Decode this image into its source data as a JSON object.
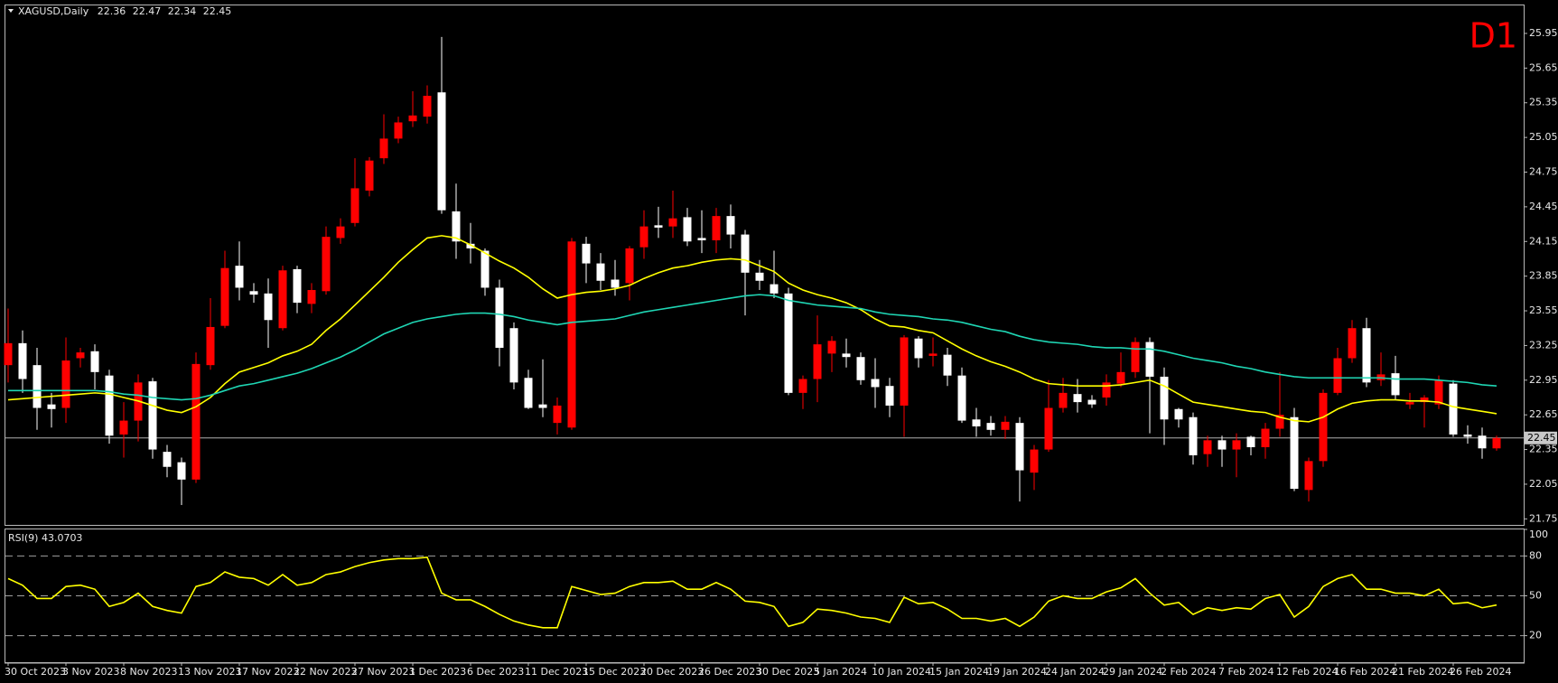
{
  "chart_data": {
    "type": "candlestick",
    "title": "XAGUSD,Daily",
    "timeframe": "D1",
    "categories": [
      "30 Oct 2023",
      null,
      null,
      null,
      "3 Nov 2023",
      null,
      null,
      null,
      "8 Nov 2023",
      null,
      null,
      null,
      "13 Nov 2023",
      null,
      null,
      null,
      "17 Nov 2023",
      null,
      null,
      null,
      "22 Nov 2023",
      null,
      null,
      null,
      "27 Nov 2023",
      null,
      null,
      null,
      "1 Dec 2023",
      null,
      null,
      null,
      "6 Dec 2023",
      null,
      null,
      null,
      "11 Dec 2023",
      null,
      null,
      null,
      "15 Dec 2023",
      null,
      null,
      null,
      "20 Dec 2023",
      null,
      null,
      null,
      "26 Dec 2023",
      null,
      null,
      null,
      "30 Dec 2023",
      null,
      null,
      null,
      "5 Jan 2024",
      null,
      null,
      null,
      "10 Jan 2024",
      null,
      null,
      null,
      "15 Jan 2024",
      null,
      null,
      null,
      "19 Jan 2024",
      null,
      null,
      null,
      "24 Jan 2024",
      null,
      null,
      null,
      "29 Jan 2024",
      null,
      null,
      null,
      "2 Feb 2024",
      null,
      null,
      null,
      "7 Feb 2024",
      null,
      null,
      null,
      "12 Feb 2024",
      null,
      null,
      null,
      "16 Feb 2024",
      null,
      null,
      null,
      "21 Feb 2024",
      null,
      null,
      null,
      "26 Feb 2024",
      null,
      null,
      null
    ],
    "candles": {
      "bull_color": "#ff0000",
      "bear_color": "#ffffff",
      "open": [
        23.08,
        23.27,
        23.08,
        22.74,
        22.71,
        23.14,
        23.2,
        22.99,
        22.48,
        22.6,
        22.94,
        22.33,
        22.24,
        22.09,
        23.08,
        23.42,
        23.94,
        23.72,
        23.7,
        23.4,
        23.91,
        23.61,
        23.72,
        24.18,
        24.31,
        24.59,
        24.87,
        25.04,
        25.19,
        25.23,
        25.44,
        24.41,
        24.13,
        24.07,
        23.75,
        23.4,
        22.97,
        22.74,
        22.58,
        22.54,
        24.13,
        23.96,
        23.82,
        23.79,
        24.1,
        24.29,
        24.28,
        24.36,
        24.18,
        24.16,
        24.37,
        24.21,
        23.88,
        23.78,
        23.7,
        22.84,
        22.96,
        23.18,
        23.18,
        23.15,
        22.96,
        22.9,
        22.73,
        23.31,
        23.16,
        23.17,
        22.99,
        22.61,
        22.58,
        22.52,
        22.58,
        22.15,
        22.35,
        22.71,
        22.83,
        22.78,
        22.8,
        22.92,
        23.02,
        23.28,
        22.98,
        22.7,
        22.63,
        22.31,
        22.43,
        22.35,
        22.46,
        22.37,
        22.53,
        22.63,
        22.0,
        22.25,
        22.84,
        23.14,
        23.4,
        22.95,
        23.01,
        22.74,
        22.76,
        22.74,
        22.92,
        22.48,
        22.47,
        22.36
      ],
      "high": [
        23.57,
        23.38,
        23.23,
        22.84,
        23.32,
        23.23,
        23.26,
        23.04,
        22.76,
        23.0,
        22.97,
        22.39,
        22.28,
        23.19,
        23.66,
        24.07,
        24.15,
        23.79,
        23.83,
        23.94,
        23.94,
        23.79,
        24.28,
        24.35,
        24.87,
        24.88,
        25.25,
        25.23,
        25.45,
        25.5,
        25.92,
        24.65,
        24.31,
        24.09,
        23.82,
        23.45,
        23.04,
        23.13,
        22.8,
        24.18,
        24.19,
        24.05,
        23.99,
        24.11,
        24.42,
        24.45,
        24.59,
        24.44,
        24.42,
        24.44,
        24.47,
        24.25,
        23.99,
        24.07,
        23.75,
        22.99,
        23.51,
        23.33,
        23.31,
        23.19,
        23.14,
        22.97,
        23.34,
        23.33,
        23.32,
        23.23,
        23.06,
        22.71,
        22.64,
        22.64,
        22.63,
        22.39,
        22.95,
        22.97,
        22.96,
        22.82,
        23.0,
        23.19,
        23.32,
        23.32,
        23.06,
        22.71,
        22.67,
        22.47,
        22.47,
        22.49,
        22.47,
        22.58,
        23.02,
        22.71,
        22.28,
        22.87,
        23.23,
        23.47,
        23.49,
        23.19,
        23.16,
        22.84,
        22.82,
        22.99,
        22.95,
        22.56,
        22.54,
        22.47
      ],
      "low": [
        22.93,
        22.84,
        22.52,
        22.54,
        22.58,
        23.06,
        22.87,
        22.4,
        22.28,
        22.42,
        22.27,
        22.11,
        21.87,
        22.06,
        23.04,
        23.4,
        23.64,
        23.62,
        23.23,
        23.38,
        23.53,
        23.53,
        23.69,
        24.13,
        24.28,
        24.54,
        24.82,
        25.0,
        25.14,
        25.17,
        24.39,
        24.0,
        23.96,
        23.68,
        23.07,
        22.87,
        22.7,
        22.63,
        22.48,
        22.52,
        23.79,
        23.73,
        23.68,
        23.64,
        24.0,
        24.18,
        24.18,
        24.11,
        24.05,
        24.05,
        24.09,
        23.51,
        23.73,
        23.66,
        22.82,
        22.7,
        22.76,
        23.02,
        23.06,
        22.91,
        22.71,
        22.63,
        22.46,
        23.06,
        23.07,
        22.9,
        22.58,
        22.46,
        22.47,
        22.44,
        21.9,
        22.0,
        22.33,
        22.67,
        22.67,
        22.71,
        22.73,
        22.89,
        22.97,
        22.49,
        22.39,
        22.54,
        22.22,
        22.2,
        22.2,
        22.11,
        22.3,
        22.27,
        22.46,
        21.99,
        21.9,
        22.2,
        22.82,
        23.1,
        22.89,
        22.9,
        22.78,
        22.7,
        22.54,
        22.7,
        22.46,
        22.4,
        22.27,
        22.34
      ],
      "close": [
        23.27,
        22.96,
        22.71,
        22.7,
        23.12,
        23.19,
        23.02,
        22.47,
        22.6,
        22.93,
        22.35,
        22.2,
        22.09,
        23.09,
        23.41,
        23.92,
        23.75,
        23.69,
        23.47,
        23.9,
        23.62,
        23.73,
        24.19,
        24.28,
        24.61,
        24.85,
        25.04,
        25.18,
        25.24,
        25.41,
        24.42,
        24.15,
        24.09,
        23.75,
        23.23,
        22.93,
        22.71,
        22.71,
        22.73,
        24.15,
        23.96,
        23.81,
        23.75,
        24.09,
        24.28,
        24.27,
        24.35,
        24.15,
        24.16,
        24.37,
        24.21,
        23.88,
        23.81,
        23.7,
        22.84,
        22.96,
        23.26,
        23.29,
        23.15,
        22.95,
        22.89,
        22.73,
        23.32,
        23.14,
        23.18,
        22.99,
        22.6,
        22.55,
        22.52,
        22.59,
        22.17,
        22.35,
        22.71,
        22.84,
        22.76,
        22.74,
        22.93,
        23.02,
        23.28,
        22.98,
        22.61,
        22.61,
        22.3,
        22.43,
        22.35,
        22.43,
        22.37,
        22.53,
        22.65,
        22.01,
        22.25,
        22.84,
        23.14,
        23.4,
        22.93,
        23.0,
        22.82,
        22.76,
        22.8,
        22.95,
        22.48,
        22.46,
        22.36,
        22.45
      ]
    },
    "overlays": [
      {
        "type": "line",
        "color": "#ffff00",
        "values": [
          22.78,
          22.79,
          22.8,
          22.81,
          22.82,
          22.83,
          22.84,
          22.83,
          22.8,
          22.77,
          22.73,
          22.69,
          22.67,
          22.72,
          22.8,
          22.92,
          23.02,
          23.06,
          23.1,
          23.16,
          23.2,
          23.26,
          23.38,
          23.48,
          23.6,
          23.72,
          23.84,
          23.97,
          24.08,
          24.18,
          24.2,
          24.18,
          24.12,
          24.05,
          23.98,
          23.92,
          23.84,
          23.74,
          23.66,
          23.69,
          23.71,
          23.72,
          23.74,
          23.77,
          23.83,
          23.88,
          23.92,
          23.94,
          23.97,
          23.99,
          24.0,
          23.99,
          23.94,
          23.89,
          23.79,
          23.73,
          23.69,
          23.66,
          23.62,
          23.56,
          23.48,
          23.42,
          23.41,
          23.38,
          23.36,
          23.29,
          23.22,
          23.16,
          23.11,
          23.07,
          23.02,
          22.96,
          22.92,
          22.91,
          22.9,
          22.9,
          22.9,
          22.91,
          22.93,
          22.95,
          22.9,
          22.83,
          22.76,
          22.74,
          22.72,
          22.7,
          22.68,
          22.67,
          22.63,
          22.6,
          22.59,
          22.63,
          22.7,
          22.75,
          22.77,
          22.78,
          22.78,
          22.77,
          22.77,
          22.76,
          22.72,
          22.7,
          22.68,
          22.66
        ]
      },
      {
        "type": "line",
        "color": "#1fd6b4",
        "values": [
          22.86,
          22.86,
          22.86,
          22.86,
          22.86,
          22.86,
          22.86,
          22.85,
          22.83,
          22.82,
          22.8,
          22.79,
          22.78,
          22.79,
          22.82,
          22.86,
          22.9,
          22.92,
          22.95,
          22.98,
          23.01,
          23.05,
          23.1,
          23.15,
          23.21,
          23.28,
          23.35,
          23.4,
          23.45,
          23.48,
          23.5,
          23.52,
          23.53,
          23.53,
          23.52,
          23.5,
          23.47,
          23.45,
          23.43,
          23.45,
          23.46,
          23.47,
          23.48,
          23.51,
          23.54,
          23.56,
          23.58,
          23.6,
          23.62,
          23.64,
          23.66,
          23.68,
          23.69,
          23.68,
          23.64,
          23.62,
          23.6,
          23.59,
          23.58,
          23.57,
          23.54,
          23.52,
          23.51,
          23.5,
          23.48,
          23.47,
          23.45,
          23.42,
          23.39,
          23.37,
          23.33,
          23.3,
          23.28,
          23.27,
          23.26,
          23.24,
          23.23,
          23.23,
          23.22,
          23.22,
          23.2,
          23.17,
          23.14,
          23.12,
          23.1,
          23.07,
          23.05,
          23.02,
          23.0,
          22.98,
          22.97,
          22.97,
          22.97,
          22.97,
          22.97,
          22.97,
          22.96,
          22.96,
          22.96,
          22.95,
          22.94,
          22.93,
          22.91,
          22.9
        ]
      }
    ],
    "ylim": [
      21.69,
      26.2
    ],
    "yticks": [
      21.75,
      22.05,
      22.35,
      22.65,
      22.95,
      23.25,
      23.55,
      23.85,
      24.15,
      24.45,
      24.75,
      25.05,
      25.35,
      25.65,
      25.95
    ],
    "grid": false,
    "current_price_line": true,
    "indicator": {
      "type": "line",
      "title": "RSI(9) 43.0703",
      "color": "#ffff00",
      "values": [
        63,
        58,
        48,
        48,
        57,
        58,
        55,
        42,
        45,
        52,
        42,
        39,
        37,
        57,
        60,
        68,
        64,
        63,
        58,
        66,
        58,
        60,
        66,
        68,
        72,
        75,
        77,
        78,
        78,
        79,
        52,
        47,
        47,
        42,
        36,
        31,
        28,
        26,
        26,
        57,
        54,
        51,
        52,
        57,
        60,
        60,
        61,
        55,
        55,
        60,
        55,
        46,
        45,
        42,
        27,
        30,
        40,
        39,
        37,
        34,
        33,
        30,
        49,
        44,
        45,
        40,
        33,
        33,
        31,
        33,
        27,
        34,
        46,
        50,
        48,
        48,
        53,
        56,
        63,
        52,
        43,
        45,
        36,
        41,
        39,
        41,
        40,
        48,
        51,
        34,
        42,
        57,
        63,
        66,
        55,
        55,
        52,
        52,
        50,
        55,
        44,
        45,
        41,
        43.0703
      ],
      "ylim": [
        0,
        100
      ],
      "yticks": [
        20,
        50,
        80,
        100
      ],
      "levels": [
        20,
        50,
        80
      ]
    }
  }
}
